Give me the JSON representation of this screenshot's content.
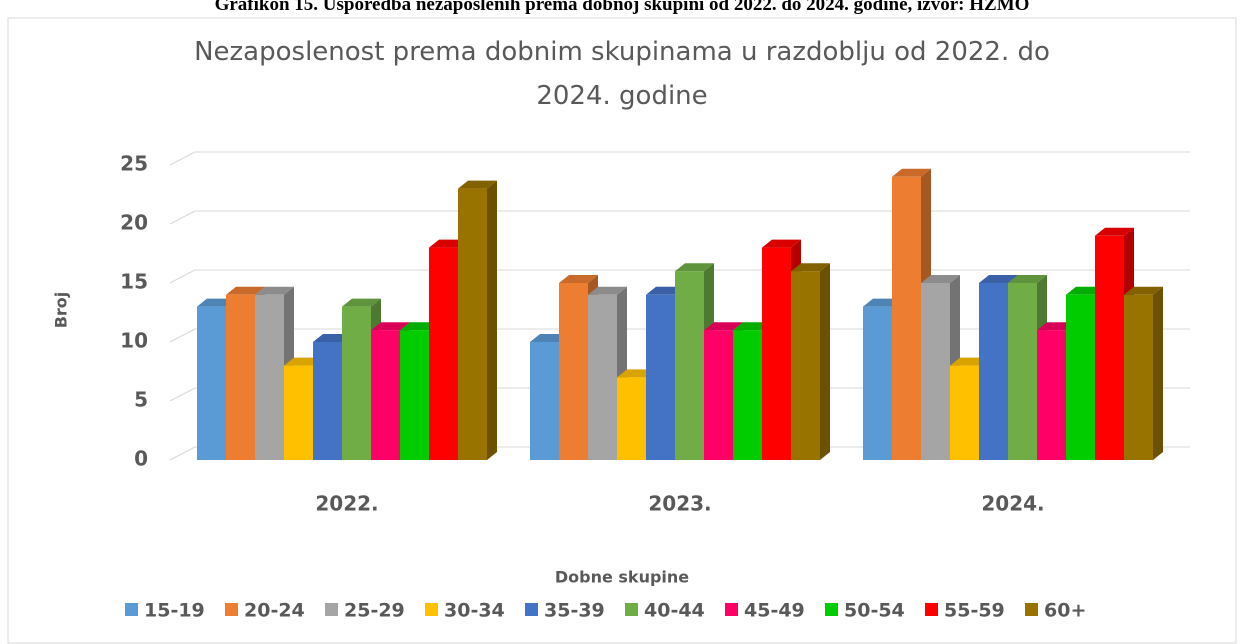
{
  "caption": "Grafikon 15. Usporedba nezaposlenih prema dobnoj skupini od 2022. do 2024. godine, izvor: HZMO",
  "chart_data": {
    "type": "bar3d",
    "title": "Nezaposlenost prema dobnim skupinama u razdoblju od 2022. do 2024. godine",
    "y_label": "Broj",
    "x_label": "Dobne skupine",
    "categories": [
      "2022.",
      "2023.",
      "2024."
    ],
    "ylim": [
      0,
      25
    ],
    "yticks": [
      0,
      5,
      10,
      15,
      20,
      25
    ],
    "grid": true,
    "legend": "bottom",
    "series": [
      {
        "name": "15-19",
        "color": "#5b9bd5",
        "values": [
          13,
          10,
          13
        ]
      },
      {
        "name": "20-24",
        "color": "#ed7d31",
        "values": [
          14,
          15,
          24
        ]
      },
      {
        "name": "25-29",
        "color": "#a5a5a5",
        "values": [
          14,
          14,
          15
        ]
      },
      {
        "name": "30-34",
        "color": "#ffc000",
        "values": [
          8,
          7,
          8
        ]
      },
      {
        "name": "35-39",
        "color": "#4472c4",
        "values": [
          10,
          14,
          15
        ]
      },
      {
        "name": "40-44",
        "color": "#70ad47",
        "values": [
          13,
          16,
          15
        ]
      },
      {
        "name": "45-49",
        "color": "#ff0066",
        "values": [
          11,
          11,
          11
        ]
      },
      {
        "name": "50-54",
        "color": "#00cc00",
        "values": [
          11,
          11,
          14
        ]
      },
      {
        "name": "55-59",
        "color": "#ff0000",
        "values": [
          18,
          18,
          19
        ]
      },
      {
        "name": "60+",
        "color": "#997300",
        "values": [
          23,
          16,
          14
        ]
      }
    ]
  }
}
